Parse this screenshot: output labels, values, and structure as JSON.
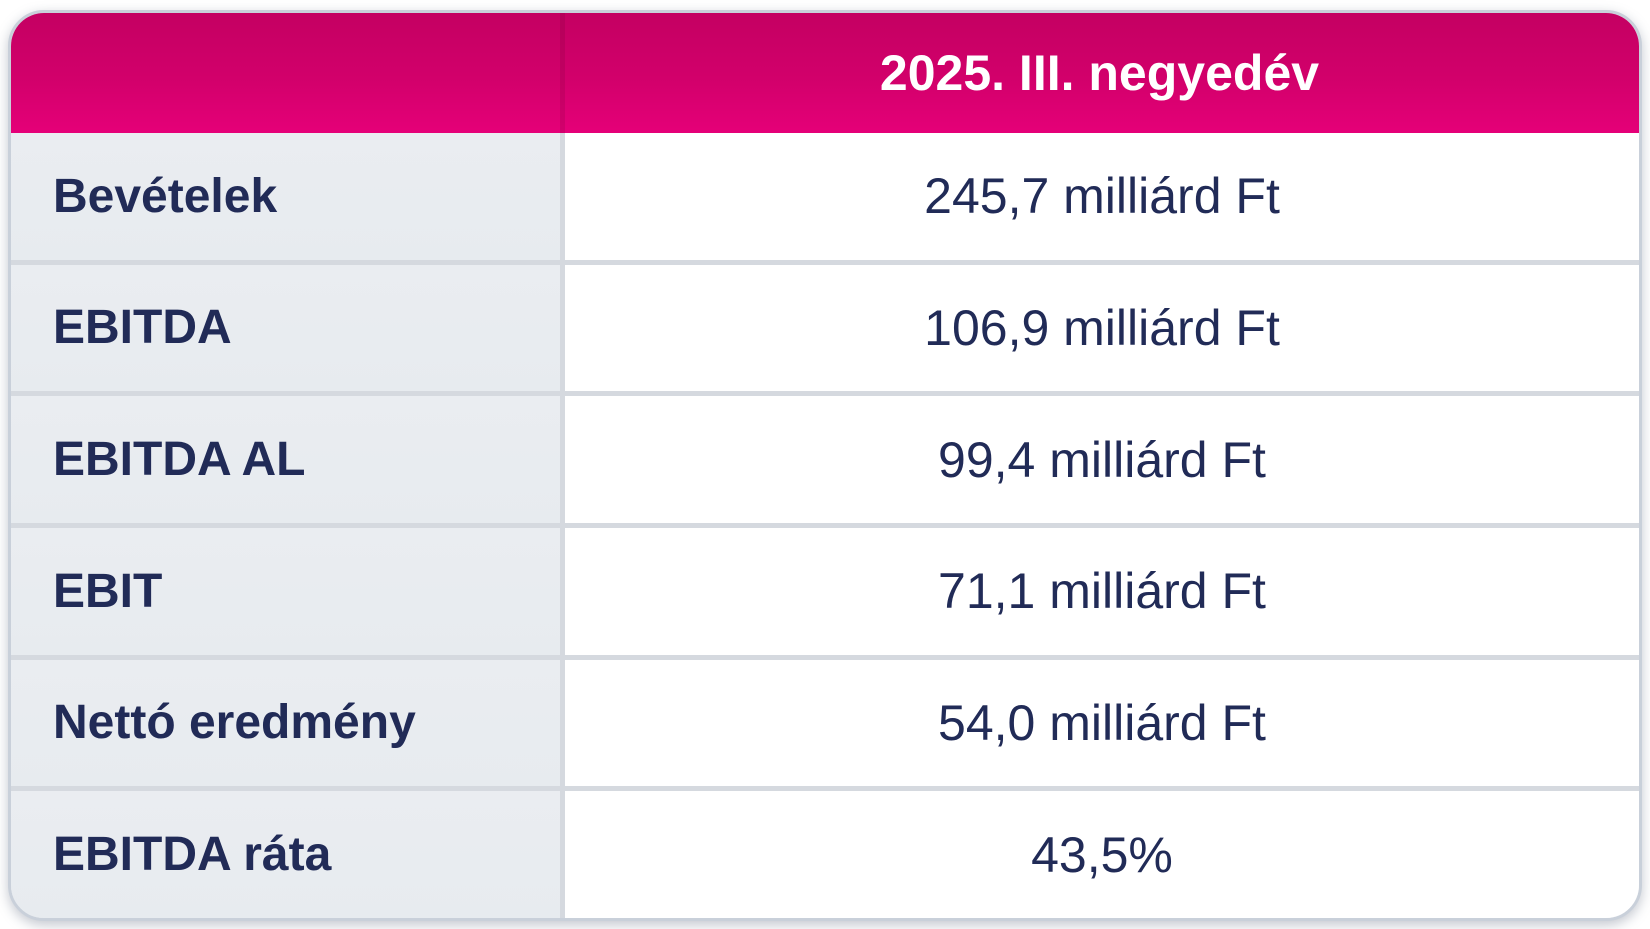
{
  "table": {
    "header": {
      "quarter_label": "2025. III. negyedév"
    },
    "rows": [
      {
        "id": "bevetelek",
        "label": "Bevételek",
        "value": "245,7 milliárd Ft"
      },
      {
        "id": "ebitda",
        "label": "EBITDA",
        "value": "106,9 milliárd Ft"
      },
      {
        "id": "ebitda-al",
        "label": "EBITDA AL",
        "value": "99,4 milliárd Ft"
      },
      {
        "id": "ebit",
        "label": "EBIT",
        "value": "71,1 milliárd Ft"
      },
      {
        "id": "netto-eredmeny",
        "label": "Nettó eredmény",
        "value": "54,0 milliárd Ft"
      },
      {
        "id": "ebitda-rata",
        "label": "EBITDA ráta",
        "value": "43,5%"
      }
    ]
  },
  "colors": {
    "header_gradient_top": "#C40062",
    "header_gradient_bottom": "#E50078",
    "header_text": "#FFFFFF",
    "label_cell_background": "#E9ECEF",
    "value_cell_background": "#FFFFFF",
    "divider": "#D5D9DF",
    "text_navy": "#212B57",
    "card_border": "#C9D0DA"
  },
  "chart_data": {
    "type": "table",
    "title": "2025. III. negyedév",
    "columns": [
      "",
      "2025. III. negyedév"
    ],
    "rows": [
      [
        "Bevételek",
        "245,7 milliárd Ft"
      ],
      [
        "EBITDA",
        "106,9 milliárd Ft"
      ],
      [
        "EBITDA AL",
        "99,4 milliárd Ft"
      ],
      [
        "EBIT",
        "71,1 milliárd Ft"
      ],
      [
        "Nettó eredmény",
        "54,0 milliárd Ft"
      ],
      [
        "EBITDA ráta",
        "43,5%"
      ]
    ],
    "numeric_values": {
      "bevetelek_milliard_ft": 245.7,
      "ebitda_milliard_ft": 106.9,
      "ebitda_al_milliard_ft": 99.4,
      "ebit_milliard_ft": 71.1,
      "netto_eredmeny_milliard_ft": 54.0,
      "ebitda_rata_percent": 43.5
    },
    "unit": "milliárd Ft",
    "layout": "two-column key/value table, magenta header band, alternating gray label column and white value column"
  }
}
